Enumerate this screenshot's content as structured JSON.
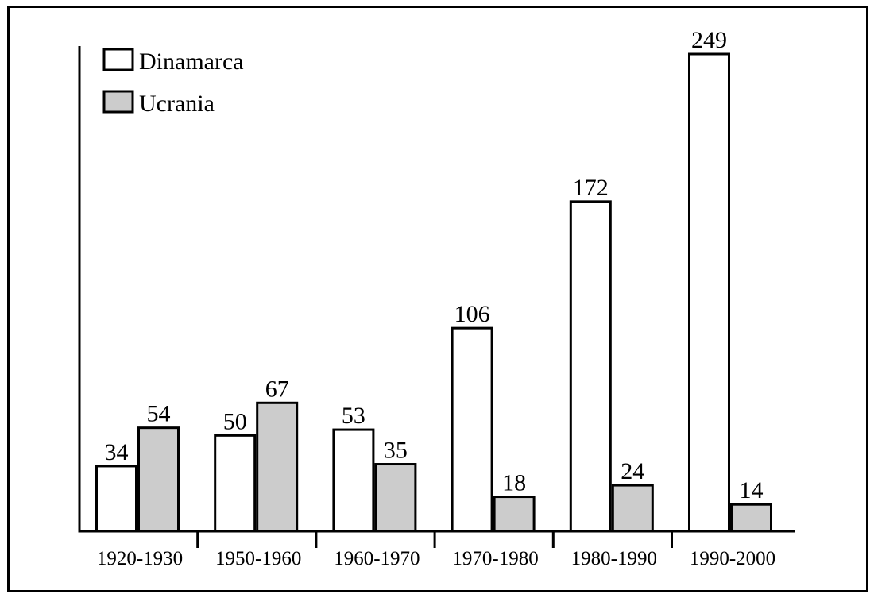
{
  "chart_data": {
    "type": "bar",
    "categories": [
      "1920-1930",
      "1950-1960",
      "1960-1970",
      "1970-1980",
      "1980-1990",
      "1990-2000"
    ],
    "series": [
      {
        "name": "Dinamarca",
        "values": [
          34,
          50,
          53,
          106,
          172,
          249
        ],
        "color": "#ffffff"
      },
      {
        "name": "Ucrania",
        "values": [
          54,
          67,
          35,
          18,
          24,
          14
        ],
        "color": "#cccccc"
      }
    ],
    "legend": {
      "position": "top-left"
    },
    "grid": false,
    "ylim": [
      0,
      249
    ],
    "title": "",
    "xlabel": "",
    "ylabel": ""
  }
}
